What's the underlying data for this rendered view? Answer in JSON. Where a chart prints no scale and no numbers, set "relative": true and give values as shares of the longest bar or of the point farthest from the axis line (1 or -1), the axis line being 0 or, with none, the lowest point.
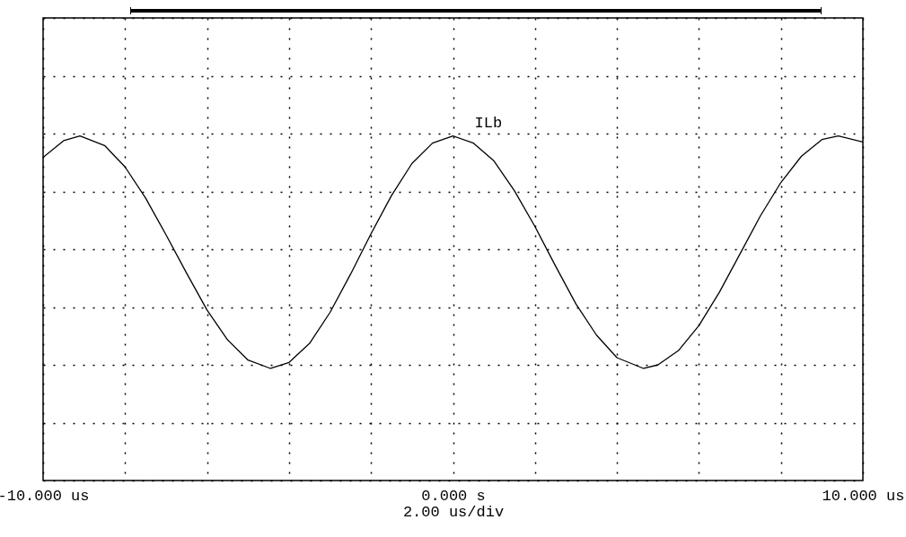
{
  "chart_data": {
    "type": "line",
    "relative": true,
    "xlabel": "2.00 us/div",
    "xlim": [
      -10,
      10
    ],
    "xticks": [
      {
        "value": -10,
        "label": "-10.000 us"
      },
      {
        "value": -8,
        "label": null
      },
      {
        "value": -6,
        "label": null
      },
      {
        "value": -4,
        "label": null
      },
      {
        "value": -2,
        "label": null
      },
      {
        "value": 0,
        "label": "0.000 s"
      },
      {
        "value": 2,
        "label": null
      },
      {
        "value": 4,
        "label": null
      },
      {
        "value": 6,
        "label": null
      },
      {
        "value": 8,
        "label": null
      },
      {
        "value": 10,
        "label": "10.000 us"
      }
    ],
    "grid": true,
    "x": [
      -10,
      -9.5,
      -9.1,
      -8.5,
      -8,
      -7.5,
      -7,
      -6.5,
      -6,
      -5.5,
      -5,
      -4.45,
      -4,
      -3.5,
      -3,
      -2.5,
      -2,
      -1.5,
      -1,
      -0.5,
      0,
      0.5,
      1,
      1.5,
      2,
      2.5,
      3,
      3.5,
      4,
      4.65,
      5,
      5.5,
      6,
      6.5,
      7,
      7.5,
      8,
      8.5,
      9,
      9.4,
      10
    ],
    "series": [
      {
        "name": "ILb",
        "color": "#000000",
        "values": [
          0.77,
          0.91,
          0.95,
          0.87,
          0.69,
          0.43,
          0.12,
          -0.2,
          -0.51,
          -0.76,
          -0.93,
          -1,
          -0.95,
          -0.79,
          -0.53,
          -0.21,
          0.13,
          0.45,
          0.72,
          0.89,
          0.95,
          0.89,
          0.74,
          0.49,
          0.19,
          -0.14,
          -0.46,
          -0.72,
          -0.91,
          -1,
          -0.97,
          -0.85,
          -0.64,
          -0.36,
          -0.04,
          0.28,
          0.56,
          0.78,
          0.92,
          0.95,
          0.9
        ]
      }
    ]
  }
}
